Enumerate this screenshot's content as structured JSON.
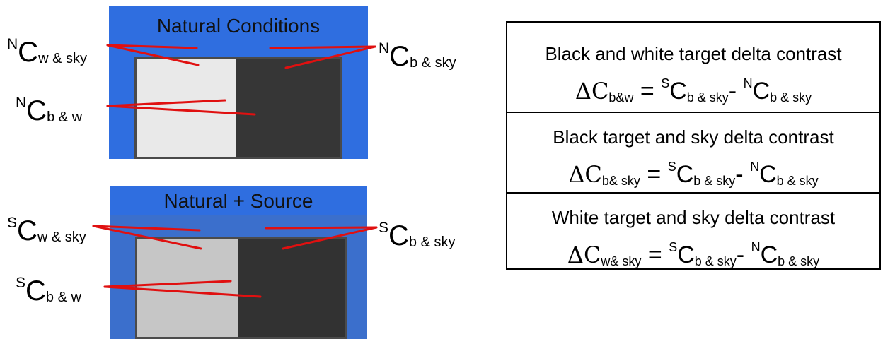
{
  "panels": {
    "top": {
      "title": "Natural Conditions"
    },
    "bottom": {
      "title": "Natural + Source"
    }
  },
  "labels": {
    "top": {
      "w_sky": {
        "pre": "N",
        "main": "C",
        "sub": "w & sky"
      },
      "b_sky": {
        "pre": "N",
        "main": "C",
        "sub": "b & sky"
      },
      "b_w": {
        "pre": "N",
        "main": "C",
        "sub": "b & w"
      }
    },
    "bottom": {
      "w_sky": {
        "pre": "S",
        "main": "C",
        "sub": "w & sky"
      },
      "b_sky": {
        "pre": "S",
        "main": "C",
        "sub": "b & sky"
      },
      "b_w": {
        "pre": "S",
        "main": "C",
        "sub": "b & w"
      }
    }
  },
  "equations": [
    {
      "title": "Black and white target delta contrast",
      "delta": "ΔC",
      "lhs_sub": "b&w",
      "eq": " = ",
      "t1_pre": "S",
      "t1": "C",
      "t1_sub": "b & sky",
      "minus": "- ",
      "t2_pre": "N",
      "t2": "C",
      "t2_sub": "b & sky"
    },
    {
      "title": "Black target and sky delta contrast",
      "delta": "ΔC",
      "lhs_sub": "b& sky",
      "eq": " = ",
      "t1_pre": "S",
      "t1": "C",
      "t1_sub": "b & sky",
      "minus": "- ",
      "t2_pre": "N",
      "t2": "C",
      "t2_sub": "b & sky"
    },
    {
      "title": "White target and sky delta contrast",
      "delta": "ΔC",
      "lhs_sub": "w& sky",
      "eq": " = ",
      "t1_pre": "S",
      "t1": "C",
      "t1_sub": "b & sky",
      "minus": "- ",
      "t2_pre": "N",
      "t2": "C",
      "t2_sub": "b & sky"
    }
  ],
  "colors": {
    "sky_blue": "#2f6ee0",
    "pointer_red": "#e01010",
    "white_target": "#e9e9e9",
    "black_target": "#363636"
  }
}
